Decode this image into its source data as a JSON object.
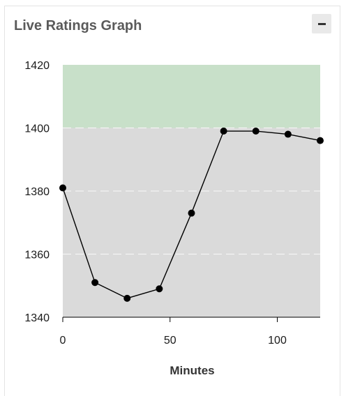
{
  "panel": {
    "title": "Live Ratings Graph",
    "collapse_icon": "minus-icon"
  },
  "chart_data": {
    "type": "line",
    "title": "",
    "xlabel": "Minutes",
    "ylabel": "",
    "xlim": [
      0,
      120
    ],
    "ylim": [
      1340,
      1420
    ],
    "xticks": [
      0,
      50,
      100
    ],
    "yticks": [
      1340,
      1360,
      1380,
      1400,
      1420
    ],
    "grid": "horizontal dashed",
    "bands": [
      {
        "from": 1400,
        "to": 1420,
        "color": "#c8e0c9"
      },
      {
        "from": 1340,
        "to": 1400,
        "color": "#dadada"
      }
    ],
    "series": [
      {
        "color": "#000000",
        "x": [
          0,
          15,
          30,
          45,
          60,
          75,
          90,
          105,
          120
        ],
        "y": [
          1381,
          1351,
          1346,
          1349,
          1373,
          1399,
          1399,
          1398,
          1396
        ]
      }
    ]
  }
}
